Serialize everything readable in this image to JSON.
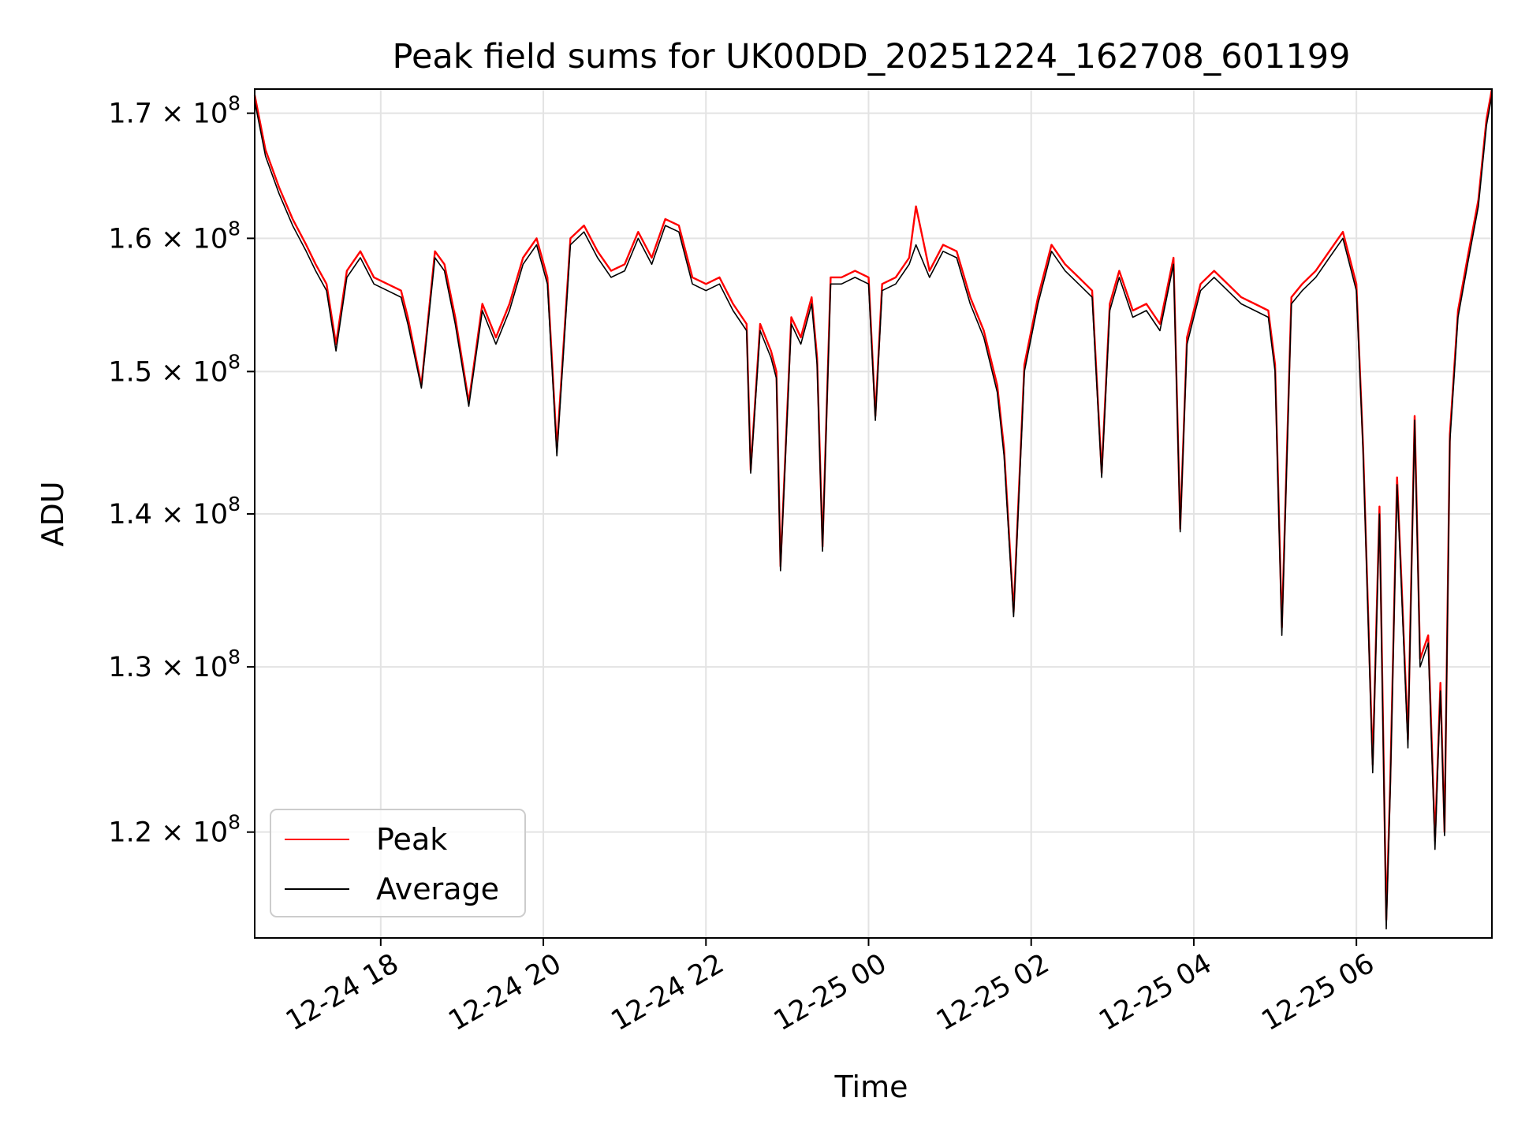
{
  "chart_data": {
    "type": "line",
    "title": "Peak field sums for UK00DD_20251224_162708_601199",
    "xlabel": "Time",
    "ylabel": "ADU",
    "yscale": "log",
    "xlim": [
      "2025-12-24 16:27",
      "2025-12-25 07:40"
    ],
    "ylim": [
      114000000,
      172000000
    ],
    "x_ticks": [
      {
        "value": "2025-12-24 18:00",
        "label": "12-24 18"
      },
      {
        "value": "2025-12-24 20:00",
        "label": "12-24 20"
      },
      {
        "value": "2025-12-24 22:00",
        "label": "12-24 22"
      },
      {
        "value": "2025-12-25 00:00",
        "label": "12-25 00"
      },
      {
        "value": "2025-12-25 02:00",
        "label": "12-25 02"
      },
      {
        "value": "2025-12-25 04:00",
        "label": "12-25 04"
      },
      {
        "value": "2025-12-25 06:00",
        "label": "12-25 06"
      }
    ],
    "y_ticks": [
      {
        "value": 120000000,
        "mantissa": "1.2",
        "base": "10",
        "exp": "8"
      },
      {
        "value": 130000000,
        "mantissa": "1.3",
        "base": "10",
        "exp": "8"
      },
      {
        "value": 140000000,
        "mantissa": "1.4",
        "base": "10",
        "exp": "8"
      },
      {
        "value": 150000000,
        "mantissa": "1.5",
        "base": "10",
        "exp": "8"
      },
      {
        "value": 160000000,
        "mantissa": "1.6",
        "base": "10",
        "exp": "8"
      },
      {
        "value": 170000000,
        "mantissa": "1.7",
        "base": "10",
        "exp": "8"
      }
    ],
    "grid": true,
    "legend": "lower-left",
    "series": [
      {
        "name": "Peak",
        "color": "#ff0000",
        "x": [
          "2025-12-24 16:27",
          "2025-12-24 16:35",
          "2025-12-24 16:45",
          "2025-12-24 16:55",
          "2025-12-24 17:05",
          "2025-12-24 17:12",
          "2025-12-24 17:20",
          "2025-12-24 17:27",
          "2025-12-24 17:35",
          "2025-12-24 17:45",
          "2025-12-24 17:55",
          "2025-12-24 18:05",
          "2025-12-24 18:15",
          "2025-12-24 18:20",
          "2025-12-24 18:30",
          "2025-12-24 18:40",
          "2025-12-24 18:47",
          "2025-12-24 18:55",
          "2025-12-24 19:05",
          "2025-12-24 19:15",
          "2025-12-24 19:25",
          "2025-12-24 19:35",
          "2025-12-24 19:45",
          "2025-12-24 19:55",
          "2025-12-24 20:03",
          "2025-12-24 20:10",
          "2025-12-24 20:20",
          "2025-12-24 20:30",
          "2025-12-24 20:40",
          "2025-12-24 20:50",
          "2025-12-24 21:00",
          "2025-12-24 21:10",
          "2025-12-24 21:20",
          "2025-12-24 21:30",
          "2025-12-24 21:40",
          "2025-12-24 21:50",
          "2025-12-24 22:00",
          "2025-12-24 22:10",
          "2025-12-24 22:20",
          "2025-12-24 22:30",
          "2025-12-24 22:33",
          "2025-12-24 22:40",
          "2025-12-24 22:48",
          "2025-12-24 22:52",
          "2025-12-24 22:55",
          "2025-12-24 23:03",
          "2025-12-24 23:10",
          "2025-12-24 23:18",
          "2025-12-24 23:22",
          "2025-12-24 23:26",
          "2025-12-24 23:32",
          "2025-12-24 23:40",
          "2025-12-24 23:50",
          "2025-12-25 00:00",
          "2025-12-25 00:05",
          "2025-12-25 00:10",
          "2025-12-25 00:20",
          "2025-12-25 00:30",
          "2025-12-25 00:35",
          "2025-12-25 00:45",
          "2025-12-25 00:55",
          "2025-12-25 01:05",
          "2025-12-25 01:15",
          "2025-12-25 01:25",
          "2025-12-25 01:35",
          "2025-12-25 01:40",
          "2025-12-25 01:47",
          "2025-12-25 01:55",
          "2025-12-25 02:05",
          "2025-12-25 02:15",
          "2025-12-25 02:25",
          "2025-12-25 02:35",
          "2025-12-25 02:45",
          "2025-12-25 02:52",
          "2025-12-25 02:58",
          "2025-12-25 03:05",
          "2025-12-25 03:15",
          "2025-12-25 03:25",
          "2025-12-25 03:35",
          "2025-12-25 03:45",
          "2025-12-25 03:50",
          "2025-12-25 03:55",
          "2025-12-25 04:05",
          "2025-12-25 04:15",
          "2025-12-25 04:25",
          "2025-12-25 04:35",
          "2025-12-25 04:45",
          "2025-12-25 04:55",
          "2025-12-25 05:00",
          "2025-12-25 05:05",
          "2025-12-25 05:12",
          "2025-12-25 05:20",
          "2025-12-25 05:30",
          "2025-12-25 05:40",
          "2025-12-25 05:50",
          "2025-12-25 06:00",
          "2025-12-25 06:05",
          "2025-12-25 06:12",
          "2025-12-25 06:17",
          "2025-12-25 06:22",
          "2025-12-25 06:25",
          "2025-12-25 06:30",
          "2025-12-25 06:33",
          "2025-12-25 06:38",
          "2025-12-25 06:43",
          "2025-12-25 06:47",
          "2025-12-25 06:53",
          "2025-12-25 06:58",
          "2025-12-25 07:02",
          "2025-12-25 07:05",
          "2025-12-25 07:09",
          "2025-12-25 07:15",
          "2025-12-25 07:22",
          "2025-12-25 07:30",
          "2025-12-25 07:36",
          "2025-12-25 07:40"
        ],
        "values": [
          171500000,
          167000000,
          164000000,
          161500000,
          159500000,
          158000000,
          156500000,
          152000000,
          157500000,
          159000000,
          157000000,
          156500000,
          156000000,
          154000000,
          149000000,
          159000000,
          158000000,
          154000000,
          147800000,
          155000000,
          152500000,
          155000000,
          158500000,
          160000000,
          157000000,
          144500000,
          160000000,
          161000000,
          159000000,
          157500000,
          158000000,
          160500000,
          158500000,
          161500000,
          161000000,
          157000000,
          156500000,
          157000000,
          155000000,
          153500000,
          143000000,
          153500000,
          151500000,
          150000000,
          136500000,
          154000000,
          152500000,
          155500000,
          151000000,
          137800000,
          157000000,
          157000000,
          157500000,
          157000000,
          146800000,
          156500000,
          157000000,
          158500000,
          162500000,
          157500000,
          159500000,
          159000000,
          155500000,
          153000000,
          149000000,
          144500000,
          133500000,
          150500000,
          155500000,
          159500000,
          158000000,
          157000000,
          156000000,
          142800000,
          155000000,
          157500000,
          154500000,
          155000000,
          153500000,
          158500000,
          139000000,
          152500000,
          156500000,
          157500000,
          156500000,
          155500000,
          155000000,
          154500000,
          150500000,
          132500000,
          155500000,
          156500000,
          157500000,
          159000000,
          160500000,
          156500000,
          144500000,
          124000000,
          140500000,
          115000000,
          123000000,
          142500000,
          136000000,
          125500000,
          146800000,
          130500000,
          132000000,
          119500000,
          129000000,
          120000000,
          145500000,
          154500000,
          158500000,
          163000000,
          169500000,
          172000000
        ]
      },
      {
        "name": "Average",
        "color": "#000000",
        "x": [
          "2025-12-24 16:27",
          "2025-12-24 16:35",
          "2025-12-24 16:45",
          "2025-12-24 16:55",
          "2025-12-24 17:05",
          "2025-12-24 17:12",
          "2025-12-24 17:20",
          "2025-12-24 17:27",
          "2025-12-24 17:35",
          "2025-12-24 17:45",
          "2025-12-24 17:55",
          "2025-12-24 18:05",
          "2025-12-24 18:15",
          "2025-12-24 18:20",
          "2025-12-24 18:30",
          "2025-12-24 18:40",
          "2025-12-24 18:47",
          "2025-12-24 18:55",
          "2025-12-24 19:05",
          "2025-12-24 19:15",
          "2025-12-24 19:25",
          "2025-12-24 19:35",
          "2025-12-24 19:45",
          "2025-12-24 19:55",
          "2025-12-24 20:03",
          "2025-12-24 20:10",
          "2025-12-24 20:20",
          "2025-12-24 20:30",
          "2025-12-24 20:40",
          "2025-12-24 20:50",
          "2025-12-24 21:00",
          "2025-12-24 21:10",
          "2025-12-24 21:20",
          "2025-12-24 21:30",
          "2025-12-24 21:40",
          "2025-12-24 21:50",
          "2025-12-24 22:00",
          "2025-12-24 22:10",
          "2025-12-24 22:20",
          "2025-12-24 22:30",
          "2025-12-24 22:33",
          "2025-12-24 22:40",
          "2025-12-24 22:48",
          "2025-12-24 22:52",
          "2025-12-24 22:55",
          "2025-12-24 23:03",
          "2025-12-24 23:10",
          "2025-12-24 23:18",
          "2025-12-24 23:22",
          "2025-12-24 23:26",
          "2025-12-24 23:32",
          "2025-12-24 23:40",
          "2025-12-24 23:50",
          "2025-12-25 00:00",
          "2025-12-25 00:05",
          "2025-12-25 00:10",
          "2025-12-25 00:20",
          "2025-12-25 00:30",
          "2025-12-25 00:35",
          "2025-12-25 00:45",
          "2025-12-25 00:55",
          "2025-12-25 01:05",
          "2025-12-25 01:15",
          "2025-12-25 01:25",
          "2025-12-25 01:35",
          "2025-12-25 01:40",
          "2025-12-25 01:47",
          "2025-12-25 01:55",
          "2025-12-25 02:05",
          "2025-12-25 02:15",
          "2025-12-25 02:25",
          "2025-12-25 02:35",
          "2025-12-25 02:45",
          "2025-12-25 02:52",
          "2025-12-25 02:58",
          "2025-12-25 03:05",
          "2025-12-25 03:15",
          "2025-12-25 03:25",
          "2025-12-25 03:35",
          "2025-12-25 03:45",
          "2025-12-25 03:50",
          "2025-12-25 03:55",
          "2025-12-25 04:05",
          "2025-12-25 04:15",
          "2025-12-25 04:25",
          "2025-12-25 04:35",
          "2025-12-25 04:45",
          "2025-12-25 04:55",
          "2025-12-25 05:00",
          "2025-12-25 05:05",
          "2025-12-25 05:12",
          "2025-12-25 05:20",
          "2025-12-25 05:30",
          "2025-12-25 05:40",
          "2025-12-25 05:50",
          "2025-12-25 06:00",
          "2025-12-25 06:05",
          "2025-12-25 06:12",
          "2025-12-25 06:17",
          "2025-12-25 06:22",
          "2025-12-25 06:25",
          "2025-12-25 06:30",
          "2025-12-25 06:33",
          "2025-12-25 06:38",
          "2025-12-25 06:43",
          "2025-12-25 06:47",
          "2025-12-25 06:53",
          "2025-12-25 06:58",
          "2025-12-25 07:02",
          "2025-12-25 07:05",
          "2025-12-25 07:09",
          "2025-12-25 07:15",
          "2025-12-25 07:22",
          "2025-12-25 07:30",
          "2025-12-25 07:36",
          "2025-12-25 07:40"
        ],
        "values": [
          171000000,
          166500000,
          163500000,
          161000000,
          159000000,
          157500000,
          156000000,
          151500000,
          157000000,
          158500000,
          156500000,
          156000000,
          155500000,
          153500000,
          148800000,
          158500000,
          157500000,
          153500000,
          147500000,
          154500000,
          152000000,
          154500000,
          158000000,
          159500000,
          156500000,
          144000000,
          159500000,
          160500000,
          158500000,
          157000000,
          157500000,
          160000000,
          158000000,
          161000000,
          160500000,
          156500000,
          156000000,
          156500000,
          154500000,
          153000000,
          142800000,
          153000000,
          151000000,
          149500000,
          136200000,
          153500000,
          152000000,
          155000000,
          150500000,
          137500000,
          156500000,
          156500000,
          157000000,
          156500000,
          146500000,
          156000000,
          156500000,
          158000000,
          159500000,
          157000000,
          159000000,
          158500000,
          155000000,
          152500000,
          148500000,
          144000000,
          133200000,
          150000000,
          155000000,
          159000000,
          157500000,
          156500000,
          155500000,
          142500000,
          154500000,
          157000000,
          154000000,
          154500000,
          153000000,
          158000000,
          138800000,
          152000000,
          156000000,
          157000000,
          156000000,
          155000000,
          154500000,
          154000000,
          150000000,
          132000000,
          155000000,
          156000000,
          157000000,
          158500000,
          160000000,
          156000000,
          144200000,
          123500000,
          140000000,
          114500000,
          122500000,
          142000000,
          135500000,
          125000000,
          146500000,
          130000000,
          131500000,
          119000000,
          128500000,
          119800000,
          145000000,
          154000000,
          158000000,
          162500000,
          169000000,
          171500000
        ]
      }
    ]
  }
}
